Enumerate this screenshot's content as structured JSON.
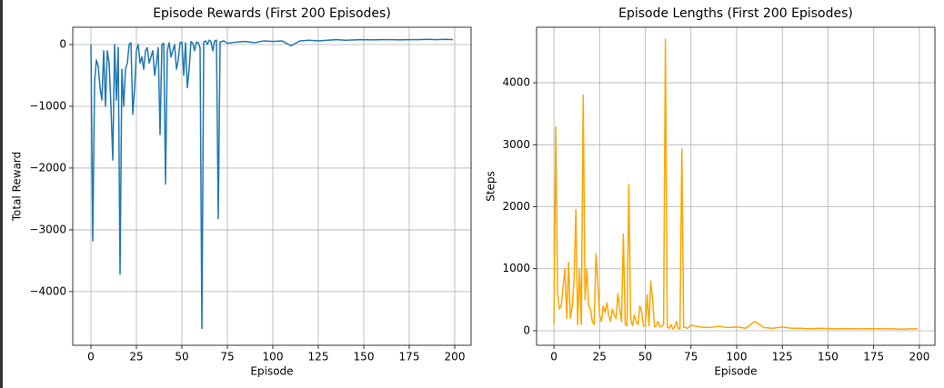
{
  "chart_data": [
    {
      "type": "line",
      "title": "Episode Rewards (First 200 Episodes)",
      "x_label": "Episode",
      "y_label": "Total Reward",
      "color": "#1f77b4",
      "grid": true,
      "xlim": [
        -10,
        209
      ],
      "ylim": [
        -4870,
        280
      ],
      "xticks": [
        0,
        25,
        50,
        75,
        100,
        125,
        150,
        175,
        200
      ],
      "yticks": [
        {
          "value": -4000,
          "label": "−4000"
        },
        {
          "value": -3000,
          "label": "−3000"
        },
        {
          "value": -2000,
          "label": "−2000"
        },
        {
          "value": -1000,
          "label": "−1000"
        },
        0
      ],
      "x": [
        0,
        1,
        2,
        3,
        4,
        5,
        6,
        7,
        8,
        9,
        10,
        11,
        12,
        13,
        14,
        15,
        16,
        17,
        18,
        19,
        20,
        21,
        22,
        23,
        24,
        25,
        26,
        27,
        28,
        29,
        30,
        31,
        32,
        33,
        34,
        35,
        36,
        37,
        38,
        39,
        40,
        41,
        42,
        43,
        44,
        45,
        46,
        47,
        48,
        49,
        50,
        51,
        52,
        53,
        54,
        55,
        56,
        57,
        58,
        59,
        60,
        61,
        62,
        63,
        64,
        65,
        66,
        67,
        68,
        69,
        70,
        71,
        72,
        73,
        74,
        75,
        80,
        85,
        90,
        95,
        100,
        105,
        110,
        115,
        120,
        125,
        130,
        135,
        140,
        145,
        150,
        155,
        160,
        165,
        170,
        175,
        180,
        185,
        190,
        195,
        199
      ],
      "values": [
        0,
        -3180,
        -600,
        -250,
        -350,
        -700,
        -900,
        -100,
        -1000,
        -100,
        -300,
        -1000,
        -1870,
        0,
        -900,
        -50,
        -3720,
        -400,
        -1000,
        -400,
        -300,
        0,
        30,
        -1130,
        -700,
        -100,
        0,
        -300,
        -200,
        -400,
        -100,
        -50,
        -300,
        -200,
        -100,
        -500,
        -300,
        -50,
        -1460,
        0,
        20,
        -2260,
        -100,
        30,
        -200,
        -100,
        0,
        -400,
        -250,
        30,
        40,
        -500,
        30,
        -700,
        -400,
        50,
        20,
        -100,
        40,
        30,
        -50,
        -4600,
        40,
        60,
        0,
        70,
        50,
        -100,
        60,
        70,
        -2820,
        40,
        50,
        60,
        40,
        20,
        40,
        50,
        30,
        60,
        50,
        60,
        -20,
        60,
        70,
        60,
        70,
        80,
        70,
        75,
        80,
        75,
        80,
        80,
        75,
        80,
        80,
        85,
        80,
        85,
        80
      ]
    },
    {
      "type": "line",
      "title": "Episode Lengths (First 200 Episodes)",
      "x_label": "Episode",
      "y_label": "Steps",
      "color": "#ffa500",
      "grid": true,
      "xlim": [
        -9.5,
        208.5
      ],
      "ylim": [
        -235,
        4895
      ],
      "xticks": [
        0,
        25,
        50,
        75,
        100,
        125,
        150,
        175,
        200
      ],
      "yticks": [
        0,
        1000,
        2000,
        3000,
        4000
      ],
      "x": [
        0,
        1,
        2,
        3,
        4,
        5,
        6,
        7,
        8,
        9,
        10,
        11,
        12,
        13,
        14,
        15,
        16,
        17,
        18,
        19,
        20,
        21,
        22,
        23,
        24,
        25,
        26,
        27,
        28,
        29,
        30,
        31,
        32,
        33,
        34,
        35,
        36,
        37,
        38,
        39,
        40,
        41,
        42,
        43,
        44,
        45,
        46,
        47,
        48,
        49,
        50,
        51,
        52,
        53,
        54,
        55,
        56,
        57,
        58,
        59,
        60,
        61,
        62,
        63,
        64,
        65,
        66,
        67,
        68,
        69,
        70,
        71,
        72,
        73,
        74,
        75,
        80,
        85,
        90,
        95,
        100,
        105,
        110,
        115,
        120,
        125,
        130,
        135,
        140,
        145,
        150,
        155,
        160,
        165,
        170,
        175,
        180,
        185,
        190,
        195,
        199
      ],
      "values": [
        100,
        3290,
        600,
        350,
        400,
        700,
        1000,
        200,
        1100,
        200,
        400,
        800,
        1950,
        100,
        1000,
        100,
        3800,
        500,
        1000,
        400,
        350,
        150,
        100,
        1240,
        800,
        250,
        150,
        400,
        300,
        450,
        250,
        150,
        350,
        250,
        200,
        600,
        350,
        150,
        1560,
        100,
        80,
        2360,
        200,
        80,
        250,
        150,
        100,
        400,
        300,
        80,
        70,
        580,
        80,
        800,
        500,
        60,
        80,
        150,
        60,
        70,
        100,
        4700,
        60,
        40,
        100,
        30,
        50,
        150,
        40,
        30,
        2930,
        60,
        50,
        40,
        60,
        90,
        60,
        50,
        70,
        50,
        60,
        40,
        150,
        50,
        40,
        60,
        40,
        40,
        30,
        40,
        35,
        30,
        35,
        30,
        30,
        35,
        30,
        30,
        25,
        30,
        30
      ]
    }
  ]
}
